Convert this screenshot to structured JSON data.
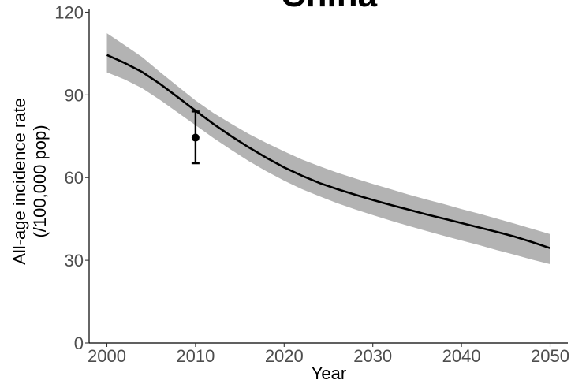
{
  "chart_data": {
    "type": "line",
    "title": "China",
    "xlabel": "Year",
    "ylabel_line1": "All-age incidence rate",
    "ylabel_line2": "(/100,000 pop)",
    "xlim": [
      1998,
      2052
    ],
    "ylim": [
      0,
      121
    ],
    "x_ticks": [
      2000,
      2010,
      2020,
      2030,
      2040,
      2050
    ],
    "x_tick_labels": [
      "2000",
      "2010",
      "2020",
      "2030",
      "2040",
      "2050"
    ],
    "y_ticks": [
      0,
      30,
      60,
      90,
      120
    ],
    "y_tick_labels": [
      "0",
      "30",
      "60",
      "90",
      "120"
    ],
    "grid": false,
    "series": [
      {
        "type": "line",
        "x": [
          2000,
          2002,
          2004,
          2006,
          2008,
          2010,
          2012,
          2014,
          2016,
          2018,
          2020,
          2022,
          2024,
          2026,
          2028,
          2030,
          2032,
          2034,
          2036,
          2038,
          2040,
          2042,
          2044,
          2046,
          2048,
          2050
        ],
        "y": [
          104.5,
          101.6,
          98.3,
          94.0,
          89.2,
          84.3,
          79.5,
          75.1,
          71.0,
          67.2,
          63.7,
          60.7,
          58.0,
          55.8,
          53.8,
          51.9,
          50.1,
          48.4,
          46.7,
          45.1,
          43.5,
          41.9,
          40.3,
          38.6,
          36.6,
          34.4
        ],
        "lower": [
          98.2,
          95.6,
          92.4,
          88.2,
          83.6,
          79.0,
          74.4,
          70.1,
          66.0,
          62.3,
          58.9,
          55.8,
          53.2,
          50.7,
          48.5,
          46.4,
          44.4,
          42.5,
          40.7,
          38.9,
          37.2,
          35.5,
          33.7,
          32.0,
          30.2,
          28.6
        ],
        "upper": [
          112.4,
          108.1,
          103.7,
          98.3,
          93.1,
          88.0,
          83.5,
          79.6,
          75.9,
          72.6,
          69.5,
          66.6,
          64.1,
          61.8,
          59.7,
          57.7,
          55.8,
          53.9,
          52.1,
          50.4,
          48.6,
          46.9,
          45.1,
          43.3,
          41.4,
          39.5
        ],
        "color": "#000000",
        "band_color": "#b3b3b3"
      },
      {
        "type": "point",
        "x": [
          2010
        ],
        "y": [
          74.5
        ],
        "err_low": [
          65.2
        ],
        "err_high": [
          84.0
        ],
        "color": "#000000"
      }
    ]
  }
}
